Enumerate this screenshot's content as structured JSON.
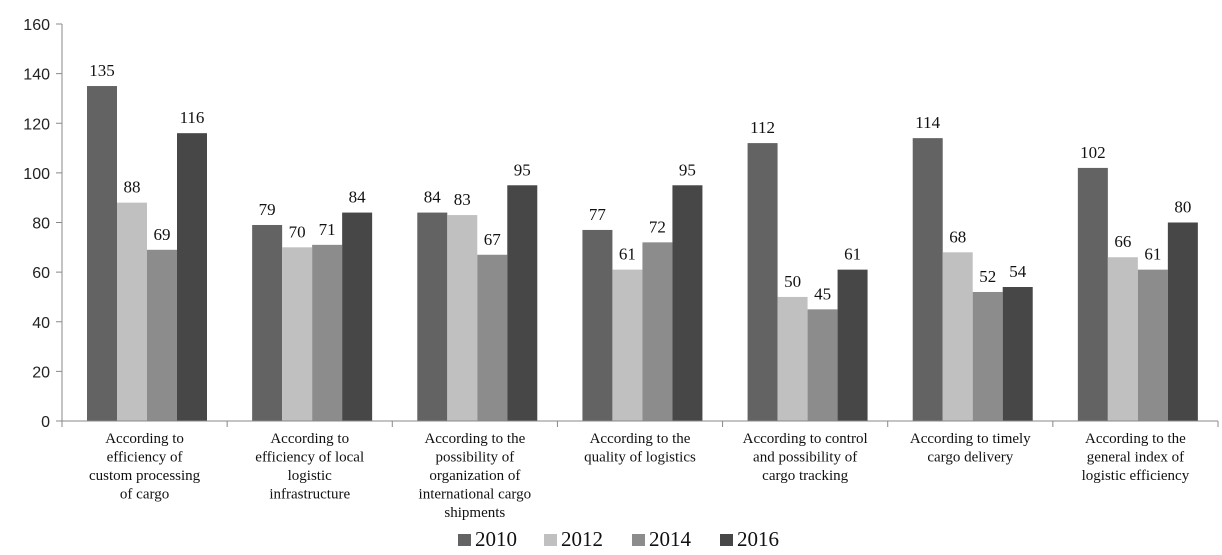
{
  "chart_data": {
    "type": "bar",
    "title": "",
    "xlabel": "",
    "ylabel": "",
    "ylim": [
      0,
      160
    ],
    "yticks": [
      0,
      20,
      40,
      60,
      80,
      100,
      120,
      140,
      160
    ],
    "grid": false,
    "legend_position": "bottom",
    "categories": [
      [
        "According to",
        "efficiency of",
        "custom processing",
        "of cargo"
      ],
      [
        "According to",
        "efficiency of local",
        "logistic",
        "infrastructure"
      ],
      [
        "According to the",
        "possibility of",
        "organization of",
        "international cargo",
        "shipments"
      ],
      [
        "According to the",
        "quality of logistics"
      ],
      [
        "According to control",
        "and possibility of",
        "cargo tracking"
      ],
      [
        "According to timely",
        "cargo delivery"
      ],
      [
        "According to the",
        "general index of",
        "logistic efficiency"
      ]
    ],
    "series": [
      {
        "name": "2010",
        "color": "#636363",
        "values": [
          135,
          79,
          84,
          77,
          112,
          114,
          102
        ]
      },
      {
        "name": "2012",
        "color": "#c0c0c0",
        "values": [
          88,
          70,
          83,
          61,
          50,
          68,
          66
        ]
      },
      {
        "name": "2014",
        "color": "#8c8c8c",
        "values": [
          69,
          71,
          67,
          72,
          45,
          52,
          61
        ]
      },
      {
        "name": "2016",
        "color": "#474747",
        "values": [
          116,
          84,
          95,
          95,
          61,
          54,
          80
        ]
      }
    ]
  }
}
